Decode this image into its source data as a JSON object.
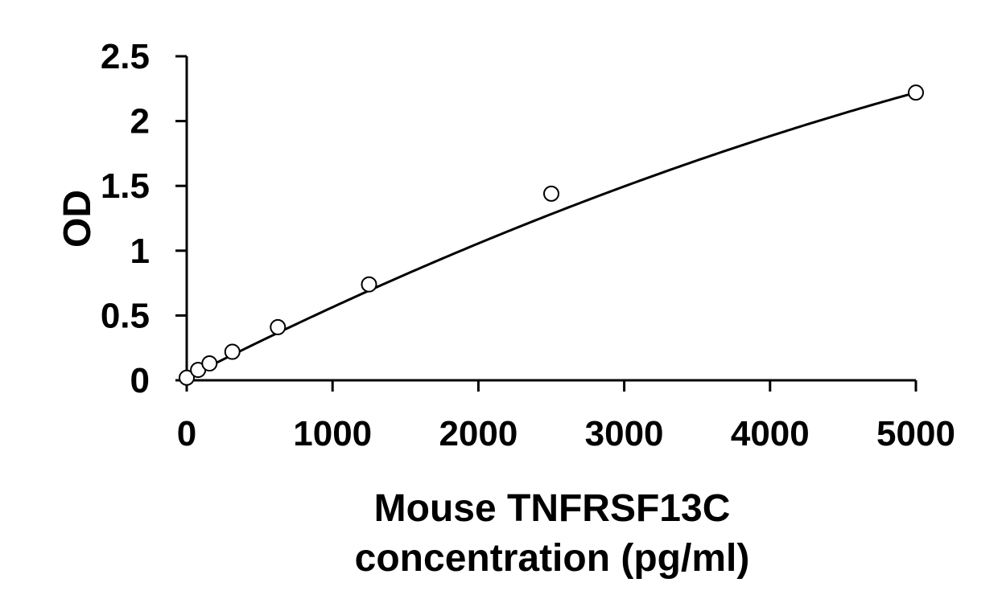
{
  "chart_data": {
    "type": "scatter",
    "xlabel_lines": [
      "Mouse TNFRSF13C",
      "concentration (pg/ml)"
    ],
    "ylabel": "OD",
    "xlim": [
      0,
      5000
    ],
    "ylim": [
      0,
      2.5
    ],
    "x_ticks": [
      0,
      1000,
      2000,
      3000,
      4000,
      5000
    ],
    "x_tick_labels": [
      "0",
      "1000",
      "2000",
      "3000",
      "4000",
      "5000"
    ],
    "y_ticks": [
      0,
      0.5,
      1,
      1.5,
      2,
      2.5
    ],
    "y_tick_labels": [
      "0",
      "0.5",
      "1",
      "1.5",
      "2",
      "2.5"
    ],
    "grid": false,
    "legend": "none",
    "series": [
      {
        "marker": "open-circle",
        "color": "#000000",
        "points": [
          {
            "x": 0,
            "y": 0.02
          },
          {
            "x": 78,
            "y": 0.08
          },
          {
            "x": 156,
            "y": 0.13
          },
          {
            "x": 313,
            "y": 0.22
          },
          {
            "x": 625,
            "y": 0.41
          },
          {
            "x": 1250,
            "y": 0.74
          },
          {
            "x": 2500,
            "y": 1.44
          },
          {
            "x": 5000,
            "y": 2.22
          }
        ]
      }
    ],
    "fit_curve": {
      "type": "polynomial",
      "color": "#000000",
      "coefficients": [
        0.02,
        0.00057,
        -2.6e-08
      ]
    }
  }
}
